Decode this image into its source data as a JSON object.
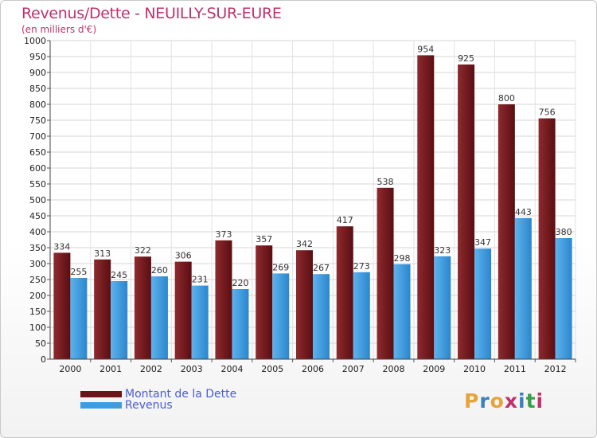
{
  "header": {
    "title": "Revenus/Dette - NEUILLY-SUR-EURE",
    "subtitle": "(en milliers d'€)"
  },
  "colors": {
    "title": "#c0306a",
    "dette": "#6b1519",
    "revenus": "#3d9de0",
    "legend_text": "#4a5bd8"
  },
  "legend": {
    "dette_label": "Montant de la Dette",
    "revenus_label": "Revenus"
  },
  "logo": {
    "text": "Proxiti",
    "letter_colors": [
      "#e8a33a",
      "#3a7fc0",
      "#e8a33a",
      "#c0306a",
      "#3a7fc0",
      "#3a9d4a",
      "#c0306a"
    ]
  },
  "chart_data": {
    "type": "bar",
    "title": "Revenus/Dette - NEUILLY-SUR-EURE",
    "subtitle": "(en milliers d'€)",
    "xlabel": "",
    "ylabel": "",
    "ylim": [
      0,
      1000
    ],
    "ytick_step": 50,
    "grid": true,
    "legend_position": "bottom-left",
    "categories": [
      "2000",
      "2001",
      "2002",
      "2003",
      "2004",
      "2005",
      "2006",
      "2007",
      "2008",
      "2009",
      "2010",
      "2011",
      "2012"
    ],
    "series": [
      {
        "name": "Montant de la Dette",
        "values": [
          334,
          313,
          322,
          306,
          373,
          357,
          342,
          417,
          538,
          954,
          925,
          800,
          756
        ]
      },
      {
        "name": "Revenus",
        "values": [
          255,
          245,
          260,
          231,
          220,
          269,
          267,
          273,
          298,
          323,
          347,
          443,
          380
        ]
      }
    ]
  }
}
